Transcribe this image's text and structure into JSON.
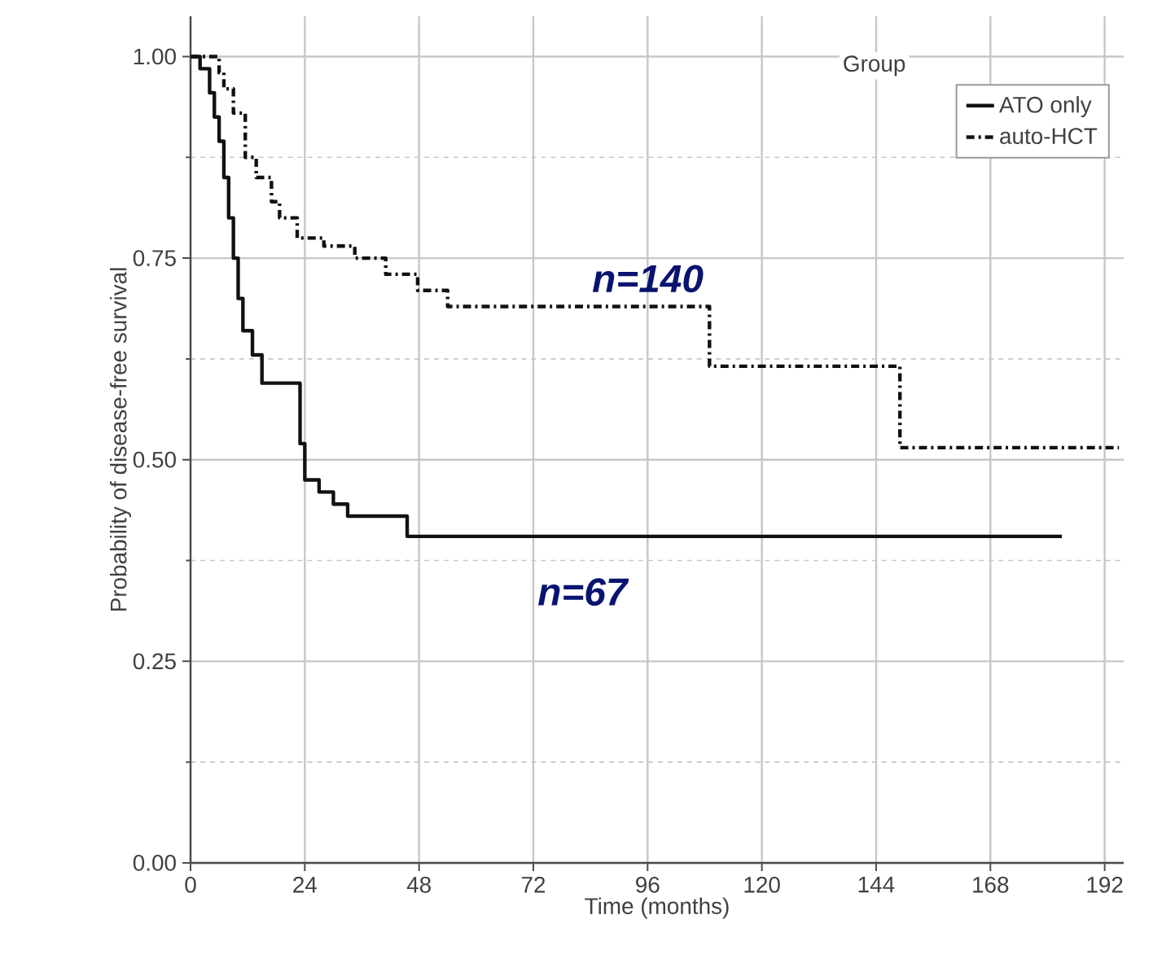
{
  "chart_data": {
    "type": "step",
    "xlabel": "Time (months)",
    "ylabel": "Probability of disease-free survival",
    "legend_title": "Group",
    "legend": "top right",
    "grid": true,
    "xlim": [
      0,
      196
    ],
    "ylim": [
      0,
      1.05
    ],
    "xticks": [
      0,
      24,
      48,
      72,
      96,
      120,
      144,
      168,
      192
    ],
    "yticks": [
      {
        "value": 0,
        "label": "0.00"
      },
      {
        "value": 0.25,
        "label": "0.25"
      },
      {
        "value": 0.5,
        "label": "0.50"
      },
      {
        "value": 0.75,
        "label": "0.75"
      },
      {
        "value": 1,
        "label": "1.00"
      }
    ],
    "series": [
      {
        "name": "ATO only",
        "color": "#111111",
        "line_style": "solid",
        "x": [
          0,
          2,
          4,
          5,
          6,
          7,
          8,
          9,
          10,
          11,
          13,
          15,
          22,
          23,
          24,
          27,
          30,
          33,
          45.5,
          183
        ],
        "values": [
          1.0,
          0.985,
          0.955,
          0.925,
          0.895,
          0.85,
          0.8,
          0.75,
          0.7,
          0.66,
          0.63,
          0.595,
          0.595,
          0.52,
          0.475,
          0.46,
          0.445,
          0.43,
          0.405,
          0.405
        ]
      },
      {
        "name": "auto-HCT",
        "color": "#111111",
        "line_style": "dashed",
        "x": [
          0,
          6,
          7,
          9,
          11.5,
          13.8,
          17,
          18.7,
          22.4,
          28,
          34.5,
          41,
          47.7,
          54,
          109,
          149,
          195
        ],
        "values": [
          1.0,
          0.98,
          0.96,
          0.93,
          0.875,
          0.85,
          0.82,
          0.8,
          0.775,
          0.765,
          0.75,
          0.73,
          0.71,
          0.69,
          0.616,
          0.515,
          0.515
        ]
      }
    ],
    "annotations": [
      "n=140",
      "n=67"
    ]
  }
}
